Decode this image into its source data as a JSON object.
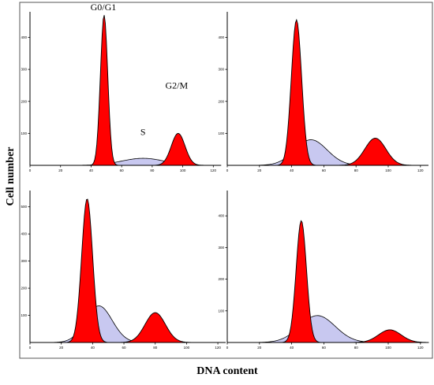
{
  "figure": {
    "xlabel": "DNA content",
    "ylabel": "Cell number"
  },
  "chart_data": [
    {
      "type": "area",
      "panel": "top-left",
      "x_ticks": [
        0,
        20,
        40,
        60,
        80,
        100,
        120
      ],
      "y_ticks": [
        100,
        200,
        300,
        400
      ],
      "xlim": [
        0,
        125
      ],
      "ylim": [
        0,
        480
      ],
      "annotations": [
        {
          "text": "G0/G1",
          "x": 48,
          "y": 485
        },
        {
          "text": "S",
          "x": 74,
          "y": 95
        },
        {
          "text": "G2/M",
          "x": 96,
          "y": 240
        }
      ],
      "series": [
        {
          "name": "G0/G1",
          "color": "#ff0000",
          "peaks": [
            {
              "mu": 48.5,
              "sigma": 2.4,
              "height": 470
            }
          ]
        },
        {
          "name": "S",
          "color": "#c8c8f0",
          "peaks": [
            {
              "mu": 74,
              "sigma": 14,
              "height": 22
            }
          ]
        },
        {
          "name": "G2/M",
          "color": "#ff0000",
          "peaks": [
            {
              "mu": 97,
              "sigma": 4.5,
              "height": 100
            }
          ]
        }
      ]
    },
    {
      "type": "area",
      "panel": "top-right",
      "x_ticks": [
        0,
        20,
        40,
        60,
        80,
        100,
        120
      ],
      "y_ticks": [
        100,
        200,
        300,
        400
      ],
      "xlim": [
        0,
        125
      ],
      "ylim": [
        0,
        480
      ],
      "annotations": [],
      "series": [
        {
          "name": "G0/G1",
          "color": "#ff0000",
          "peaks": [
            {
              "mu": 43,
              "sigma": 3.2,
              "height": 455
            }
          ]
        },
        {
          "name": "S",
          "color": "#c8c8f0",
          "peaks": [
            {
              "mu": 52,
              "sigma": 10,
              "height": 80
            }
          ]
        },
        {
          "name": "G2/M",
          "color": "#ff0000",
          "peaks": [
            {
              "mu": 92,
              "sigma": 6.5,
              "height": 85
            }
          ]
        }
      ]
    },
    {
      "type": "area",
      "panel": "bottom-left",
      "x_ticks": [
        0,
        20,
        40,
        60,
        80,
        100,
        120
      ],
      "y_ticks": [
        100,
        200,
        300,
        400,
        500
      ],
      "xlim": [
        0,
        125
      ],
      "ylim": [
        0,
        560
      ],
      "annotations": [],
      "series": [
        {
          "name": "G0/G1",
          "color": "#ff0000",
          "peaks": [
            {
              "mu": 36.5,
              "sigma": 3.5,
              "height": 530
            }
          ]
        },
        {
          "name": "S",
          "color": "#c8c8f0",
          "peaks": [
            {
              "mu": 44,
              "sigma": 8.5,
              "height": 135
            }
          ]
        },
        {
          "name": "G2/M",
          "color": "#ff0000",
          "peaks": [
            {
              "mu": 80,
              "sigma": 6.5,
              "height": 110
            }
          ]
        }
      ]
    },
    {
      "type": "area",
      "panel": "bottom-right",
      "x_ticks": [
        0,
        20,
        40,
        60,
        80,
        100,
        120
      ],
      "y_ticks": [
        100,
        200,
        300,
        400
      ],
      "xlim": [
        0,
        125
      ],
      "ylim": [
        0,
        480
      ],
      "annotations": [],
      "series": [
        {
          "name": "G0/G1",
          "color": "#ff0000",
          "peaks": [
            {
              "mu": 46,
              "sigma": 3.2,
              "height": 385
            }
          ]
        },
        {
          "name": "S",
          "color": "#c8c8f0",
          "peaks": [
            {
              "mu": 56,
              "sigma": 11,
              "height": 85
            }
          ]
        },
        {
          "name": "G2/M",
          "color": "#ff0000",
          "peaks": [
            {
              "mu": 101,
              "sigma": 7,
              "height": 40
            }
          ]
        }
      ]
    }
  ]
}
